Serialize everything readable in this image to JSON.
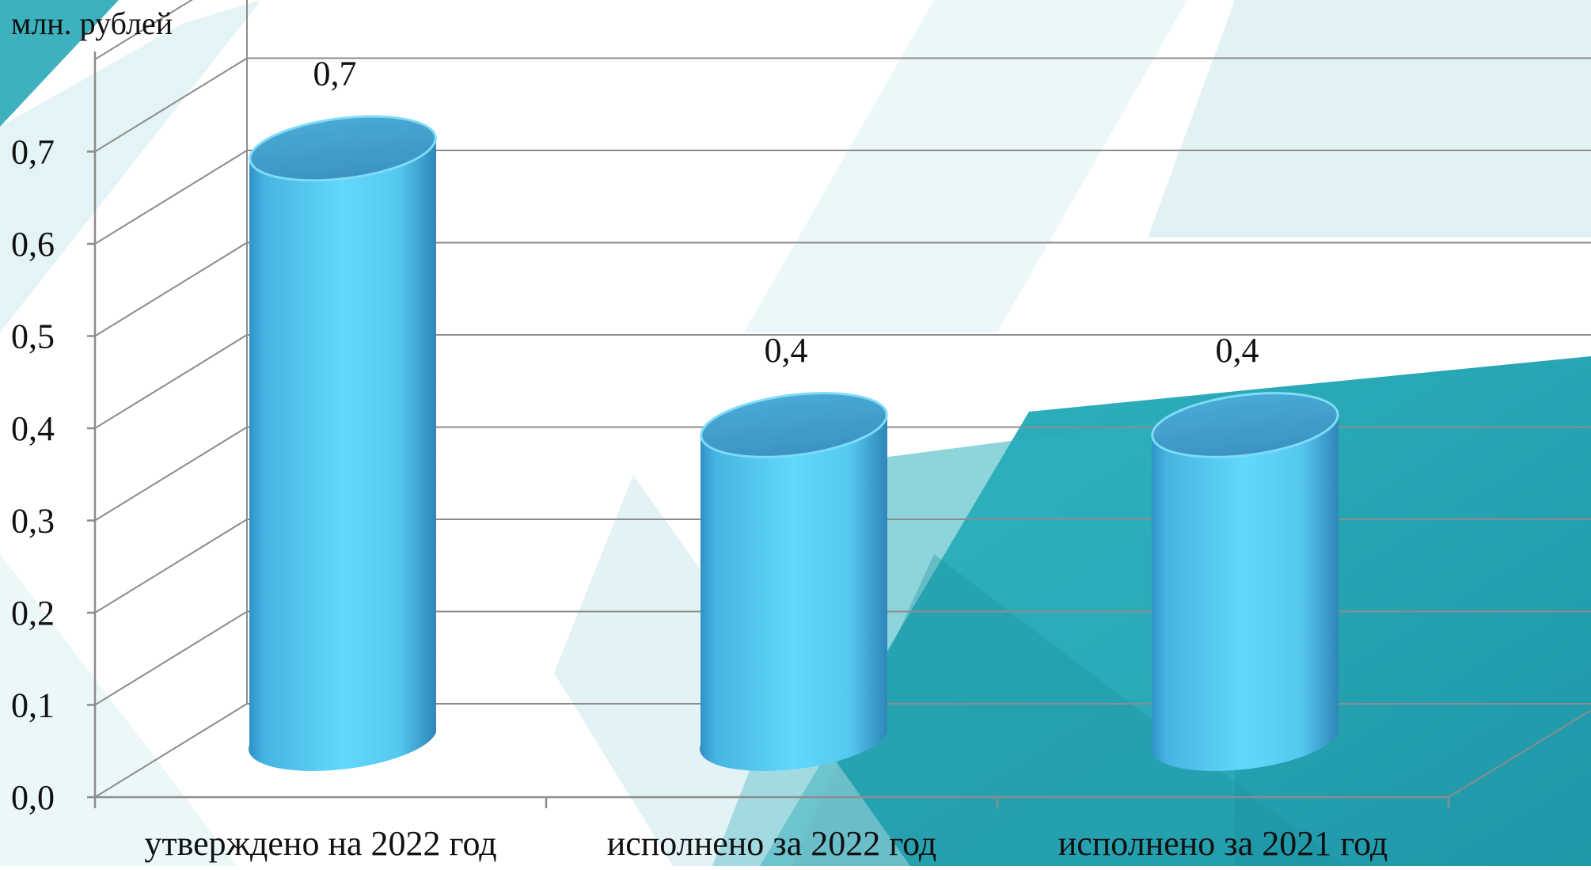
{
  "chart_data": {
    "type": "bar",
    "style": "3d-cylinder",
    "unit_label": "млн. рублей",
    "categories": [
      "утверждено на 2022 год",
      "исполнено за 2022 год",
      "исполнено за 2021 год"
    ],
    "values": [
      0.7,
      0.4,
      0.4
    ],
    "value_labels": [
      "0,7",
      "0,4",
      "0,4"
    ],
    "y_ticks": [
      "0,0",
      "0,1",
      "0,2",
      "0,3",
      "0,4",
      "0,5",
      "0,6",
      "0,7"
    ],
    "ylim": [
      0,
      0.8
    ],
    "grid": true,
    "legend": "none",
    "colors": {
      "bar_side": "#5ad0f5",
      "bar_side_dark": "#2f8fc4",
      "bar_top": "#3f9ccc",
      "bg_accent": "#2aa9b8",
      "bg_accent_light": "#b8e0e6",
      "grid": "#8c8c8c"
    }
  }
}
